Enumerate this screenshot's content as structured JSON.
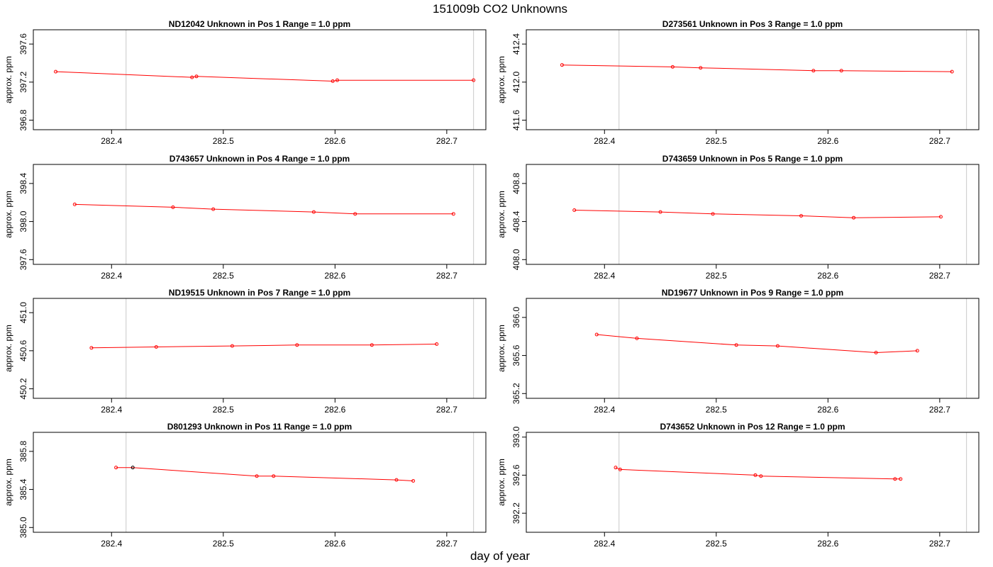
{
  "page": {
    "title": "151009b  CO2 Unknowns",
    "xlabel": "day of year"
  },
  "colors": {
    "series": "#ff0000",
    "highlight_point": "#000000",
    "vline": "#c8c8c8",
    "frame": "#000000"
  },
  "chart_data": [
    {
      "type": "line",
      "title": "ND12042    Unknown in Pos 1         Range = 1.0 ppm",
      "xlabel": "",
      "ylabel": "approx. ppm",
      "xlim": [
        282.33,
        282.735
      ],
      "ylim": [
        396.7,
        397.75
      ],
      "xticks": [
        "282.4",
        "282.5",
        "282.6",
        "282.7"
      ],
      "yticks": [
        "396.8",
        "397.2",
        "397.6"
      ],
      "vlines": [
        282.413,
        282.724
      ],
      "x": [
        282.35,
        282.472,
        282.476,
        282.598,
        282.602,
        282.724
      ],
      "y": [
        397.31,
        397.25,
        397.26,
        397.21,
        397.22,
        397.22
      ],
      "highlight_index": null
    },
    {
      "type": "line",
      "title": "D273561    Unknown in Pos 3         Range = 1.0 ppm",
      "xlabel": "",
      "ylabel": "approx. ppm",
      "xlim": [
        282.33,
        282.735
      ],
      "ylim": [
        411.5,
        412.55
      ],
      "xticks": [
        "282.4",
        "282.5",
        "282.6",
        "282.7"
      ],
      "yticks": [
        "411.6",
        "412.0",
        "412.4"
      ],
      "vlines": [
        282.413,
        282.724
      ],
      "x": [
        282.362,
        282.461,
        282.486,
        282.587,
        282.612,
        282.711
      ],
      "y": [
        412.18,
        412.16,
        412.15,
        412.12,
        412.12,
        412.11
      ],
      "highlight_index": null
    },
    {
      "type": "line",
      "title": "D743657    Unknown in Pos 4         Range = 1.0 ppm",
      "xlabel": "",
      "ylabel": "approx. ppm",
      "xlim": [
        282.33,
        282.735
      ],
      "ylim": [
        397.55,
        398.6
      ],
      "xticks": [
        "282.4",
        "282.5",
        "282.6",
        "282.7"
      ],
      "yticks": [
        "397.6",
        "398.0",
        "398.4"
      ],
      "vlines": [
        282.413,
        282.724
      ],
      "x": [
        282.367,
        282.455,
        282.491,
        282.581,
        282.618,
        282.706
      ],
      "y": [
        398.18,
        398.15,
        398.13,
        398.1,
        398.08,
        398.08
      ],
      "highlight_index": null
    },
    {
      "type": "line",
      "title": "D743659    Unknown in Pos 5         Range = 1.0 ppm",
      "xlabel": "",
      "ylabel": "approx. ppm",
      "xlim": [
        282.33,
        282.735
      ],
      "ylim": [
        407.95,
        409.0
      ],
      "xticks": [
        "282.4",
        "282.5",
        "282.6",
        "282.7"
      ],
      "yticks": [
        "408.0",
        "408.4",
        "408.8"
      ],
      "vlines": [
        282.413,
        282.724
      ],
      "x": [
        282.373,
        282.45,
        282.497,
        282.576,
        282.623,
        282.701
      ],
      "y": [
        408.52,
        408.5,
        408.48,
        408.46,
        408.44,
        408.45
      ],
      "highlight_index": null
    },
    {
      "type": "line",
      "title": "ND19515    Unknown in Pos 7         Range = 1.0 ppm",
      "xlabel": "",
      "ylabel": "approx. ppm",
      "xlim": [
        282.33,
        282.735
      ],
      "ylim": [
        450.1,
        451.15
      ],
      "xticks": [
        "282.4",
        "282.5",
        "282.6",
        "282.7"
      ],
      "yticks": [
        "450.2",
        "450.6",
        "451.0"
      ],
      "vlines": [
        282.413,
        282.724
      ],
      "x": [
        282.382,
        282.44,
        282.508,
        282.566,
        282.633,
        282.691
      ],
      "y": [
        450.63,
        450.64,
        450.65,
        450.66,
        450.66,
        450.67
      ],
      "highlight_index": null
    },
    {
      "type": "line",
      "title": "ND19677    Unknown in Pos 9         Range = 1.0 ppm",
      "xlabel": "",
      "ylabel": "approx. ppm",
      "xlim": [
        282.33,
        282.735
      ],
      "ylim": [
        365.15,
        366.2
      ],
      "xticks": [
        "282.4",
        "282.5",
        "282.6",
        "282.7"
      ],
      "yticks": [
        "365.2",
        "365.6",
        "366.0"
      ],
      "vlines": [
        282.413,
        282.724
      ],
      "x": [
        282.393,
        282.429,
        282.518,
        282.555,
        282.643,
        282.68
      ],
      "y": [
        365.82,
        365.78,
        365.71,
        365.7,
        365.63,
        365.65
      ],
      "highlight_index": null
    },
    {
      "type": "line",
      "title": "D801293    Unknown in Pos 11         Range = 1.0 ppm",
      "xlabel": "",
      "ylabel": "approx. ppm",
      "xlim": [
        282.33,
        282.735
      ],
      "ylim": [
        384.95,
        386.0
      ],
      "xticks": [
        "282.4",
        "282.5",
        "282.6",
        "282.7"
      ],
      "yticks": [
        "385.0",
        "385.4",
        "385.8"
      ],
      "vlines": [
        282.413,
        282.724
      ],
      "x": [
        282.404,
        282.419,
        282.53,
        282.545,
        282.655,
        282.67
      ],
      "y": [
        385.63,
        385.63,
        385.54,
        385.54,
        385.5,
        385.49
      ],
      "highlight_index": 1
    },
    {
      "type": "line",
      "title": "D743652    Unknown in Pos 12         Range = 1.0 ppm",
      "xlabel": "",
      "ylabel": "approx. ppm",
      "xlim": [
        282.33,
        282.735
      ],
      "ylim": [
        392.0,
        393.05
      ],
      "xticks": [
        "282.4",
        "282.5",
        "282.6",
        "282.7"
      ],
      "yticks": [
        "392.2",
        "392.6",
        "393.0"
      ],
      "vlines": [
        282.413,
        282.724
      ],
      "x": [
        282.41,
        282.414,
        282.535,
        282.54,
        282.66,
        282.665
      ],
      "y": [
        392.68,
        392.66,
        392.6,
        392.59,
        392.56,
        392.56
      ],
      "highlight_index": null
    }
  ]
}
